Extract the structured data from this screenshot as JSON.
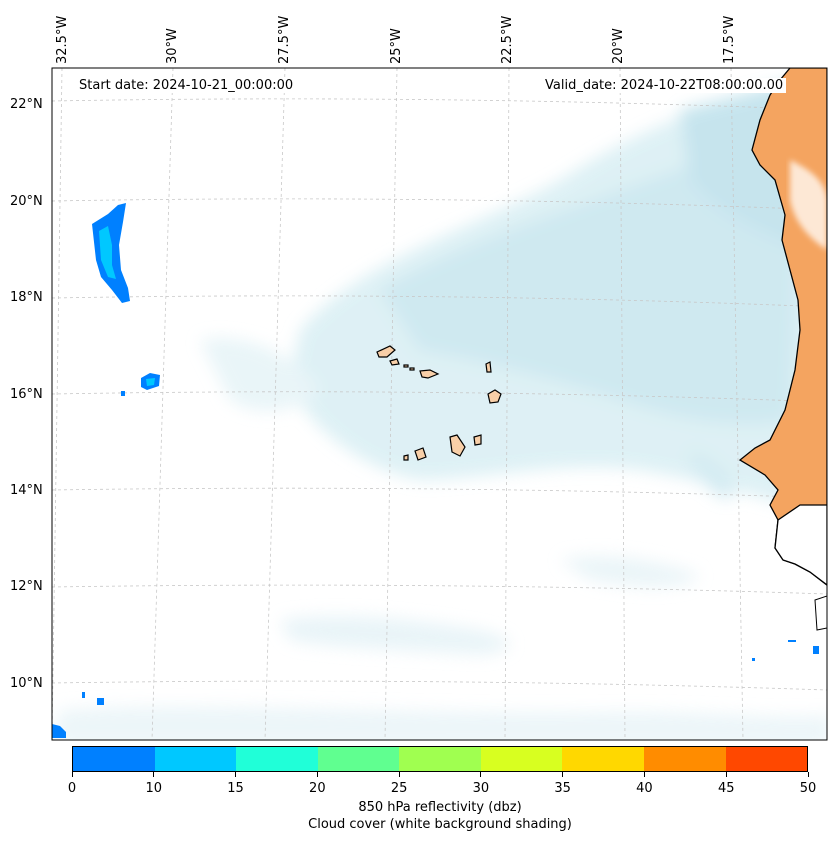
{
  "map": {
    "start_date": "Start date: 2024-10-21_00:00:00",
    "valid_date": "Valid_date: 2024-10-22T08:00:00.00",
    "lon_labels": [
      "32.5°W",
      "30°W",
      "27.5°W",
      "25°W",
      "22.5°W",
      "20°W",
      "17.5°W"
    ],
    "lat_labels": [
      "22°N",
      "20°N",
      "18°N",
      "16°N",
      "14°N",
      "12°N",
      "10°N"
    ],
    "land_color": "#f4a460",
    "coastline_color": "#000000",
    "cloud_color": "#a8d8e6",
    "gridlines": "on, dashed light gray"
  },
  "colorbar": {
    "ticks": [
      "0",
      "10",
      "15",
      "20",
      "25",
      "30",
      "35",
      "40",
      "45",
      "50"
    ],
    "colors": [
      "#0080ff",
      "#00c8ff",
      "#20ffd8",
      "#60ff90",
      "#a0ff50",
      "#d8ff20",
      "#ffd800",
      "#ff8c00",
      "#ff4800"
    ],
    "label1": "850 hPa reflectivity (dbz)",
    "label2": "Cloud cover (white background shading)"
  }
}
